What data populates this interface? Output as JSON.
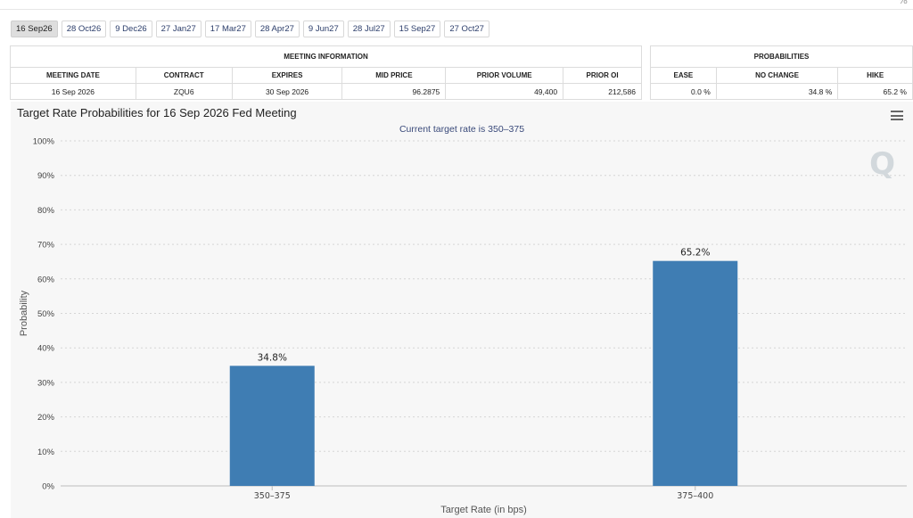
{
  "tabs": [
    {
      "label": "16 Sep26",
      "active": true
    },
    {
      "label": "28 Oct26",
      "active": false
    },
    {
      "label": "9 Dec26",
      "active": false
    },
    {
      "label": "27 Jan27",
      "active": false
    },
    {
      "label": "17 Mar27",
      "active": false
    },
    {
      "label": "28 Apr27",
      "active": false
    },
    {
      "label": "9 Jun27",
      "active": false
    },
    {
      "label": "28 Jul27",
      "active": false
    },
    {
      "label": "15 Sep27",
      "active": false
    },
    {
      "label": "27 Oct27",
      "active": false
    }
  ],
  "meeting_info": {
    "title": "MEETING INFORMATION",
    "headers": [
      "MEETING DATE",
      "CONTRACT",
      "EXPIRES",
      "MID PRICE",
      "PRIOR VOLUME",
      "PRIOR OI"
    ],
    "row": [
      "16 Sep 2026",
      "ZQU6",
      "30 Sep 2026",
      "96.2875",
      "49,400",
      "212,586"
    ]
  },
  "probabilities": {
    "title": "PROBABILITIES",
    "headers": [
      "EASE",
      "NO CHANGE",
      "HIKE"
    ],
    "row": [
      "0.0 %",
      "34.8 %",
      "65.2 %"
    ]
  },
  "chart_data": {
    "type": "bar",
    "title": "Target Rate Probabilities for 16 Sep 2026 Fed Meeting",
    "subtitle": "Current target rate is 350–375",
    "categories": [
      "350–375",
      "375–400"
    ],
    "values": [
      34.8,
      65.2
    ],
    "data_labels": [
      "34.8%",
      "65.2%"
    ],
    "xlabel": "Target Rate (in bps)",
    "ylabel": "Probability",
    "ylim": [
      0,
      100
    ],
    "yticks": [
      "0%",
      "10%",
      "20%",
      "30%",
      "40%",
      "50%",
      "60%",
      "70%",
      "80%",
      "90%",
      "100%"
    ],
    "grid": true,
    "bar_color": "#3f7db3",
    "watermark": "Q"
  }
}
